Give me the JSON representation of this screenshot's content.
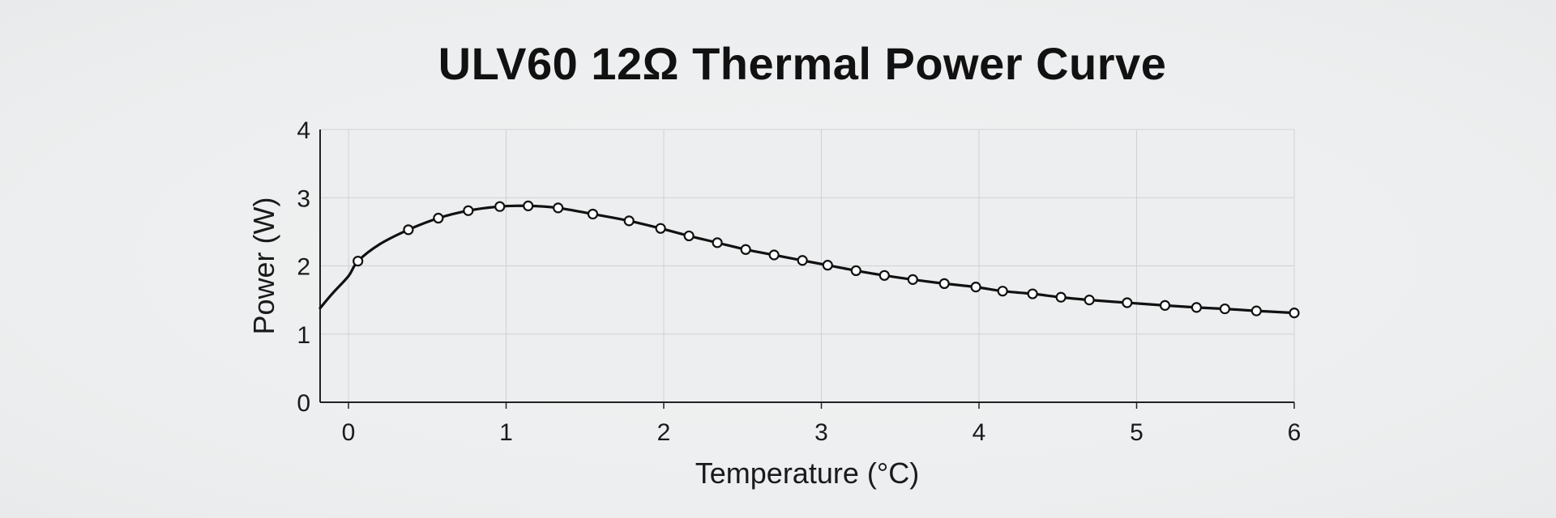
{
  "chart_data": {
    "type": "line",
    "title": "ULV60 12Ω Thermal Power Curve",
    "xlabel": "Temperature (°C)",
    "ylabel": "Power (W)",
    "xlim": [
      -0.18,
      6
    ],
    "ylim": [
      0,
      4
    ],
    "x_ticks": [
      0,
      1,
      2,
      3,
      4,
      5,
      6
    ],
    "y_ticks": [
      0,
      1,
      2,
      3,
      4
    ],
    "grid": true,
    "legend": "none",
    "line_color": "#111111",
    "marker_fill": "#ffffff",
    "series": [
      {
        "curve": [
          [
            -0.18,
            1.38
          ],
          [
            -0.1,
            1.6
          ],
          [
            0.0,
            1.85
          ],
          [
            0.06,
            2.07
          ],
          [
            0.2,
            2.32
          ],
          [
            0.38,
            2.53
          ],
          [
            0.57,
            2.7
          ],
          [
            0.76,
            2.81
          ],
          [
            0.96,
            2.87
          ],
          [
            1.14,
            2.88
          ],
          [
            1.33,
            2.85
          ],
          [
            1.55,
            2.76
          ],
          [
            1.78,
            2.66
          ],
          [
            1.98,
            2.55
          ],
          [
            2.16,
            2.44
          ],
          [
            2.34,
            2.34
          ],
          [
            2.52,
            2.24
          ],
          [
            2.7,
            2.16
          ],
          [
            2.88,
            2.08
          ],
          [
            3.04,
            2.01
          ],
          [
            3.22,
            1.93
          ],
          [
            3.4,
            1.86
          ],
          [
            3.58,
            1.8
          ],
          [
            3.78,
            1.74
          ],
          [
            3.98,
            1.69
          ],
          [
            4.15,
            1.63
          ],
          [
            4.34,
            1.59
          ],
          [
            4.52,
            1.54
          ],
          [
            4.7,
            1.5
          ],
          [
            4.94,
            1.46
          ],
          [
            5.18,
            1.42
          ],
          [
            5.38,
            1.39
          ],
          [
            5.56,
            1.37
          ],
          [
            5.76,
            1.34
          ],
          [
            6.0,
            1.31
          ]
        ],
        "markers": [
          [
            0.06,
            2.07
          ],
          [
            0.38,
            2.53
          ],
          [
            0.57,
            2.7
          ],
          [
            0.76,
            2.81
          ],
          [
            0.96,
            2.87
          ],
          [
            1.14,
            2.88
          ],
          [
            1.33,
            2.85
          ],
          [
            1.55,
            2.76
          ],
          [
            1.78,
            2.66
          ],
          [
            1.98,
            2.55
          ],
          [
            2.16,
            2.44
          ],
          [
            2.34,
            2.34
          ],
          [
            2.52,
            2.24
          ],
          [
            2.7,
            2.16
          ],
          [
            2.88,
            2.08
          ],
          [
            3.04,
            2.01
          ],
          [
            3.22,
            1.93
          ],
          [
            3.4,
            1.86
          ],
          [
            3.58,
            1.8
          ],
          [
            3.78,
            1.74
          ],
          [
            3.98,
            1.69
          ],
          [
            4.15,
            1.63
          ],
          [
            4.34,
            1.59
          ],
          [
            4.52,
            1.54
          ],
          [
            4.7,
            1.5
          ],
          [
            4.94,
            1.46
          ],
          [
            5.18,
            1.42
          ],
          [
            5.38,
            1.39
          ],
          [
            5.56,
            1.37
          ],
          [
            5.76,
            1.34
          ],
          [
            6.0,
            1.31
          ]
        ]
      }
    ]
  }
}
